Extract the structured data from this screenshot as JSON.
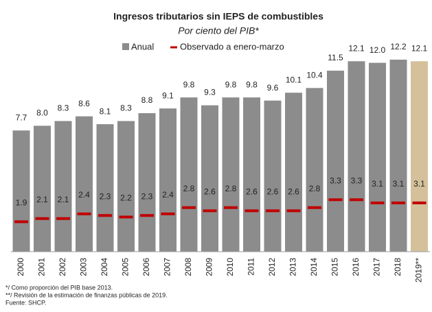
{
  "chart_data": {
    "type": "bar",
    "title": "Ingresos tributarios sin IEPS de combustibles",
    "subtitle": "Por ciento del PIB*",
    "categories": [
      "2000",
      "2001",
      "2002",
      "2003",
      "2004",
      "2005",
      "2006",
      "2007",
      "2008",
      "2009",
      "2010",
      "2011",
      "2012",
      "2013",
      "2014",
      "2015",
      "2016",
      "2017",
      "2018",
      "2019**"
    ],
    "series": [
      {
        "name": "Anual",
        "color": "#8c8c8c",
        "colors": [
          "#8c8c8c",
          "#8c8c8c",
          "#8c8c8c",
          "#8c8c8c",
          "#8c8c8c",
          "#8c8c8c",
          "#8c8c8c",
          "#8c8c8c",
          "#8c8c8c",
          "#8c8c8c",
          "#8c8c8c",
          "#8c8c8c",
          "#8c8c8c",
          "#8c8c8c",
          "#8c8c8c",
          "#8c8c8c",
          "#8c8c8c",
          "#8c8c8c",
          "#8c8c8c",
          "#d4c09a"
        ],
        "values": [
          7.7,
          8.0,
          8.3,
          8.6,
          8.1,
          8.3,
          8.8,
          9.1,
          9.8,
          9.3,
          9.8,
          9.8,
          9.6,
          10.1,
          10.4,
          11.5,
          12.1,
          12.0,
          12.2,
          12.1
        ],
        "value_labels": [
          "7.7",
          "8.0",
          "8.3",
          "8.6",
          "8.1",
          "8.3",
          "8.8",
          "9.1",
          "9.8",
          "9.3",
          "9.8",
          "9.8",
          "9.6",
          "10.1",
          "10.4",
          "11.5",
          "12.1",
          "12.0",
          "12.2",
          "12.1"
        ]
      },
      {
        "name": "Observado a enero-marzo",
        "color": "#c00000",
        "values": [
          1.9,
          2.1,
          2.1,
          2.4,
          2.3,
          2.2,
          2.3,
          2.4,
          2.8,
          2.6,
          2.8,
          2.6,
          2.6,
          2.6,
          2.8,
          3.3,
          3.3,
          3.1,
          3.1,
          3.1
        ]
      }
    ],
    "footnotes": [
      "*/ Como proporción del PIB base 2013.",
      "**/ Revisión de la estimación de finanzas públicas de 2019.",
      "Fuente: SHCP."
    ]
  }
}
